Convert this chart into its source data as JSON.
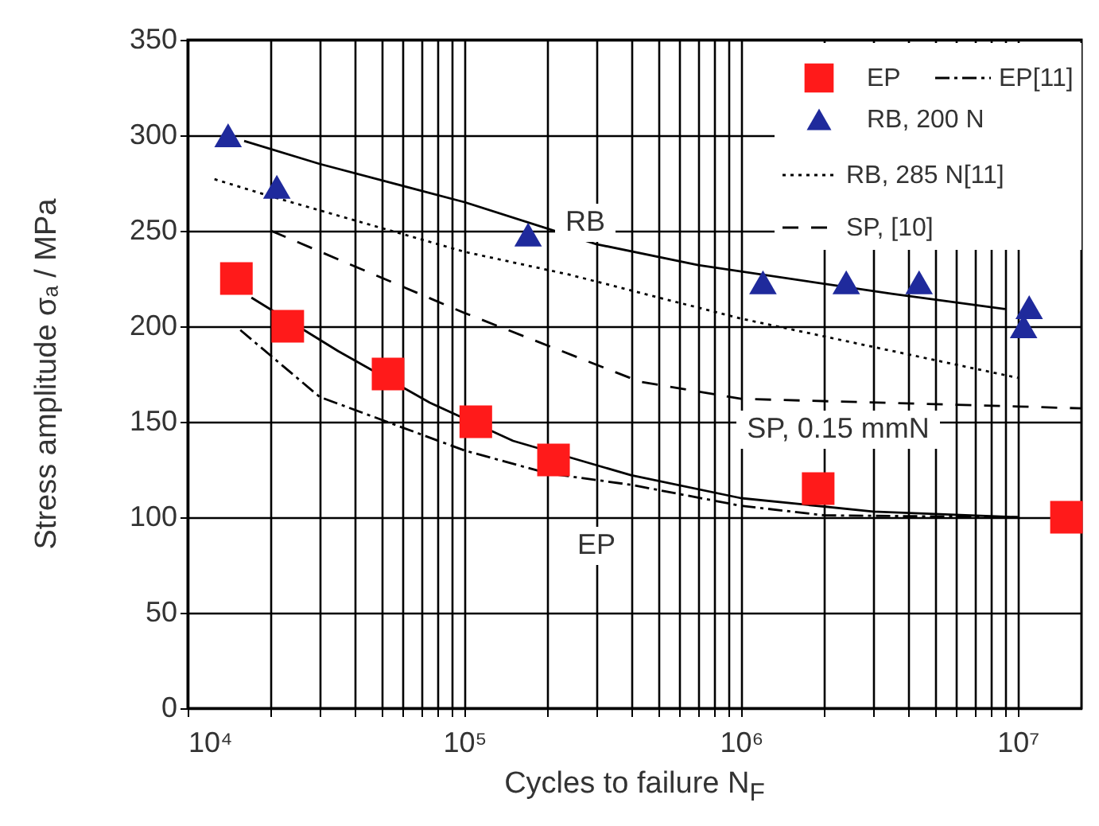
{
  "chart_data": {
    "type": "scatter",
    "xlabel": "Cycles to failure N$_{F}$",
    "ylabel": "Stress amplitude σₐ / MPa",
    "log": "x",
    "grid": true,
    "legend": "top right",
    "xlim": [
      10000,
      17000000
    ],
    "ylim": [
      0,
      350
    ],
    "xticks": [
      {
        "value": 10000,
        "label": "10⁴"
      },
      {
        "value": 20000,
        "label": null
      },
      {
        "value": 30000,
        "label": null
      },
      {
        "value": 40000,
        "label": null
      },
      {
        "value": 50000,
        "label": null
      },
      {
        "value": 60000,
        "label": null
      },
      {
        "value": 70000,
        "label": null
      },
      {
        "value": 80000,
        "label": null
      },
      {
        "value": 90000,
        "label": null
      },
      {
        "value": 100000,
        "label": "10⁵"
      },
      {
        "value": 200000,
        "label": null
      },
      {
        "value": 300000,
        "label": null
      },
      {
        "value": 400000,
        "label": null
      },
      {
        "value": 500000,
        "label": null
      },
      {
        "value": 600000,
        "label": null
      },
      {
        "value": 700000,
        "label": null
      },
      {
        "value": 800000,
        "label": null
      },
      {
        "value": 900000,
        "label": null
      },
      {
        "value": 1000000,
        "label": "10⁶"
      },
      {
        "value": 2000000,
        "label": null
      },
      {
        "value": 3000000,
        "label": null
      },
      {
        "value": 4000000,
        "label": null
      },
      {
        "value": 5000000,
        "label": null
      },
      {
        "value": 6000000,
        "label": null
      },
      {
        "value": 7000000,
        "label": null
      },
      {
        "value": 8000000,
        "label": null
      },
      {
        "value": 9000000,
        "label": null
      },
      {
        "value": 10000000,
        "label": "10⁷"
      }
    ],
    "yticks": [
      0,
      50,
      100,
      150,
      200,
      250,
      300,
      350
    ],
    "series": [
      {
        "name": "EP",
        "marker": "square",
        "color": "#ff1a1a",
        "x": [
          15000,
          23000,
          53000,
          110000,
          210000,
          1900000,
          15000000
        ],
        "values": [
          225,
          200,
          175,
          150,
          130,
          115,
          100
        ]
      },
      {
        "name": "EP[11]",
        "type": "line",
        "line_style": "dashdot",
        "color": "#000000",
        "x": [
          15500,
          30000,
          100000,
          200000,
          400000,
          1000000,
          2000000,
          10000000
        ],
        "values": [
          198,
          163,
          135,
          123,
          117,
          106,
          101,
          100
        ]
      },
      {
        "name": "RB, 200 N",
        "marker": "triangle",
        "color": "#1f2a9c",
        "x": [
          14000,
          21000,
          170000,
          1200000,
          2400000,
          4400000,
          11000000,
          10500000
        ],
        "values": [
          300,
          273,
          248,
          223,
          223,
          223,
          210,
          200
        ]
      },
      {
        "name": "RB, 285 N[11]",
        "type": "line",
        "line_style": "dotted",
        "color": "#000000",
        "x": [
          12500,
          20000,
          100000,
          240000,
          1000000,
          10000000
        ],
        "values": [
          277,
          268,
          239,
          227,
          204,
          173
        ]
      },
      {
        "name": "SP, [10]",
        "type": "line",
        "line_style": "dashed",
        "color": "#000000",
        "x": [
          20000,
          100000,
          430000,
          1000000,
          10000000,
          17000000
        ],
        "values": [
          250,
          207,
          171,
          162,
          158,
          157
        ]
      },
      {
        "type": "line",
        "line_style": "solid",
        "color": "#000000",
        "x": [
          16000,
          30000,
          100000,
          300000,
          700000,
          3500000,
          9000000
        ],
        "values": [
          297,
          285,
          265,
          243,
          232,
          217,
          209
        ]
      },
      {
        "type": "line",
        "line_style": "solid",
        "color": "#000000",
        "x": [
          17000,
          35000,
          75000,
          150000,
          400000,
          1000000,
          3000000,
          10000000
        ],
        "values": [
          215,
          187,
          160,
          140,
          122,
          110,
          103,
          100
        ]
      }
    ],
    "annotations": [
      "RB",
      "SP, 0.15 mmN",
      "EP"
    ]
  }
}
